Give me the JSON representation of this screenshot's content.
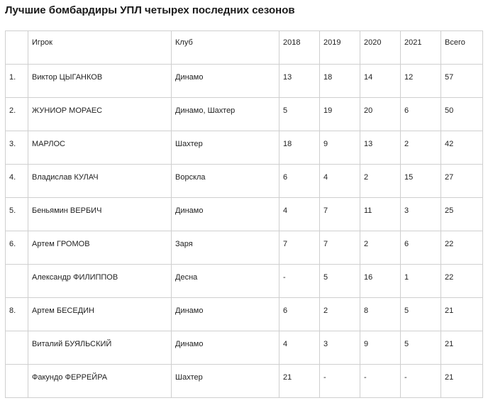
{
  "title": "Лучшие бомбардиры УПЛ четырех последних сезонов",
  "table": {
    "headers": {
      "rank": "",
      "player": "Игрок",
      "club": "Клуб",
      "y2018": "2018",
      "y2019": "2019",
      "y2020": "2020",
      "y2021": "2021",
      "total": "Всего"
    },
    "rows": [
      {
        "rank": "1.",
        "player": "Виктор ЦЫГАНКОВ",
        "club": "Динамо",
        "y2018": "13",
        "y2019": "18",
        "y2020": "14",
        "y2021": "12",
        "total": "57"
      },
      {
        "rank": "2.",
        "player": "ЖУНИОР МОРАЕС",
        "club": "Динамо, Шахтер",
        "y2018": "5",
        "y2019": "19",
        "y2020": "20",
        "y2021": "6",
        "total": "50"
      },
      {
        "rank": "3.",
        "player": "МАРЛОС",
        "club": "Шахтер",
        "y2018": "18",
        "y2019": "9",
        "y2020": "13",
        "y2021": "2",
        "total": "42"
      },
      {
        "rank": "4.",
        "player": "Владислав КУЛАЧ",
        "club": "Ворскла",
        "y2018": "6",
        "y2019": "4",
        "y2020": "2",
        "y2021": "15",
        "total": "27"
      },
      {
        "rank": "5.",
        "player": "Беньямин ВЕРБИЧ",
        "club": "Динамо",
        "y2018": "4",
        "y2019": "7",
        "y2020": "11",
        "y2021": "3",
        "total": "25"
      },
      {
        "rank": "6.",
        "player": "Артем ГРОМОВ",
        "club": "Заря",
        "y2018": "7",
        "y2019": "7",
        "y2020": "2",
        "y2021": "6",
        "total": "22"
      },
      {
        "rank": "",
        "player": "Александр ФИЛИППОВ",
        "club": "Десна",
        "y2018": "-",
        "y2019": "5",
        "y2020": "16",
        "y2021": "1",
        "total": "22"
      },
      {
        "rank": "8.",
        "player": "Артем БЕСЕДИН",
        "club": "Динамо",
        "y2018": "6",
        "y2019": "2",
        "y2020": "8",
        "y2021": "5",
        "total": "21"
      },
      {
        "rank": "",
        "player": "Виталий БУЯЛЬСКИЙ",
        "club": "Динамо",
        "y2018": "4",
        "y2019": "3",
        "y2020": "9",
        "y2021": "5",
        "total": "21"
      },
      {
        "rank": "",
        "player": "Факундо ФЕРРЕЙРА",
        "club": "Шахтер",
        "y2018": "21",
        "y2019": "-",
        "y2020": "-",
        "y2021": "-",
        "total": "21"
      }
    ]
  }
}
